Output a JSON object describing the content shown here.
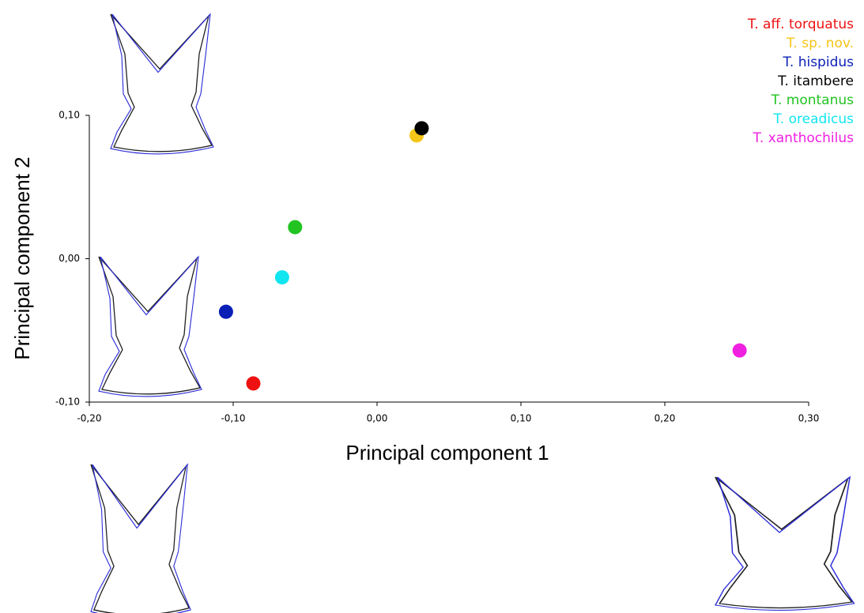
{
  "chart_data": {
    "type": "scatter",
    "xlabel": "Principal component 1",
    "ylabel": "Principal component 2",
    "xlim": [
      -0.2,
      0.3
    ],
    "ylim": [
      -0.1,
      0.1
    ],
    "xticks": [
      {
        "value": -0.2,
        "label": "-0,20"
      },
      {
        "value": -0.1,
        "label": "-0,10"
      },
      {
        "value": 0,
        "label": "0,00"
      },
      {
        "value": 0.1,
        "label": "0,10"
      },
      {
        "value": 0.2,
        "label": "0,20"
      },
      {
        "value": 0.3,
        "label": "0,30"
      }
    ],
    "yticks": [
      {
        "value": -0.1,
        "label": "-0,10"
      },
      {
        "value": 0,
        "label": "0,00"
      },
      {
        "value": 0.1,
        "label": "0,10"
      }
    ],
    "legend": "top-right",
    "series": [
      {
        "name": "T. aff. torquatus",
        "color": "#ee1111",
        "x": [
          -0.086
        ],
        "y": [
          -0.087
        ]
      },
      {
        "name": "T. sp. nov.",
        "color": "#f5c518",
        "x": [
          0.0275
        ],
        "y": [
          0.086
        ]
      },
      {
        "name": "T. hispidus",
        "color": "#0a1fb5",
        "x": [
          -0.105
        ],
        "y": [
          -0.037
        ]
      },
      {
        "name": "T. itambere",
        "color": "#000000",
        "x": [
          0.031
        ],
        "y": [
          0.091
        ]
      },
      {
        "name": "T. montanus",
        "color": "#22c422",
        "x": [
          -0.057
        ],
        "y": [
          0.022
        ]
      },
      {
        "name": "T. oreadicus",
        "color": "#11e5f0",
        "x": [
          -0.066
        ],
        "y": [
          -0.013
        ]
      },
      {
        "name": "T. xanthochilus",
        "color": "#f020e0",
        "x": [
          0.252
        ],
        "y": [
          -0.064
        ]
      }
    ]
  }
}
